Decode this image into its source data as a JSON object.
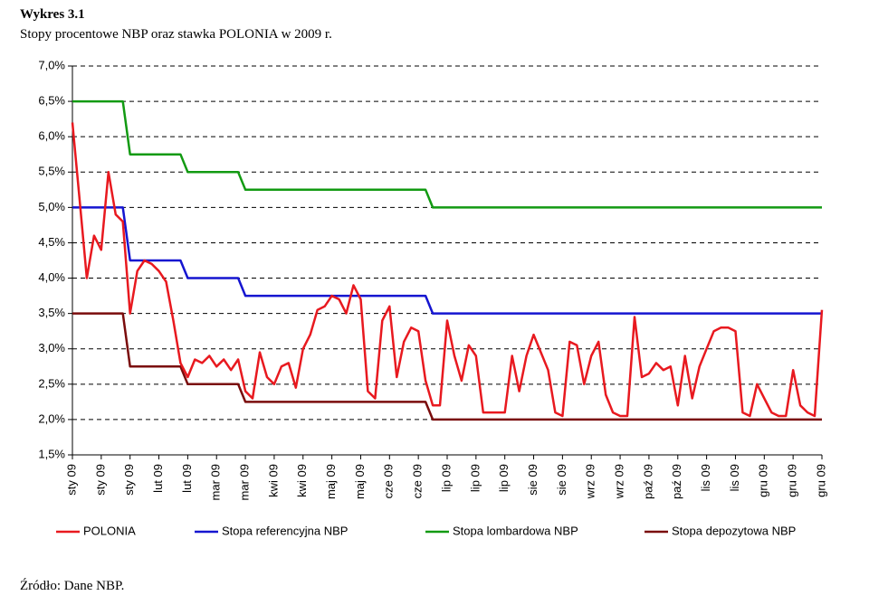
{
  "title": "Wykres 3.1",
  "subtitle": "Stopy procentowe NBP oraz stawka POLONIA w 2009 r.",
  "source": "Źródło: Dane NBP.",
  "chart_data": {
    "type": "line",
    "categories": [
      "sty 09",
      null,
      null,
      null,
      "sty 09",
      null,
      null,
      null,
      "sty 09",
      null,
      null,
      null,
      "lut 09",
      null,
      null,
      null,
      "lut 09",
      null,
      null,
      null,
      "mar 09",
      null,
      null,
      null,
      "mar 09",
      null,
      null,
      null,
      "kwi 09",
      null,
      null,
      null,
      "kwi 09",
      null,
      null,
      null,
      "maj 09",
      null,
      null,
      null,
      "maj 09",
      null,
      null,
      null,
      "cze 09",
      null,
      null,
      null,
      "cze 09",
      null,
      null,
      null,
      "lip 09",
      null,
      null,
      null,
      "lip 09",
      null,
      null,
      null,
      "lip 09",
      null,
      null,
      null,
      "sie 09",
      null,
      null,
      null,
      "sie 09",
      null,
      null,
      null,
      "wrz 09",
      null,
      null,
      null,
      "wrz 09",
      null,
      null,
      null,
      "paź 09",
      null,
      null,
      null,
      "paź 09",
      null,
      null,
      null,
      "lis 09",
      null,
      null,
      null,
      "lis 09",
      null,
      null,
      null,
      "gru 09",
      null,
      null,
      null,
      "gru 09",
      null,
      null,
      null,
      "gru 09"
    ],
    "series": [
      {
        "name": "POLONIA",
        "color": "#e8191f",
        "values": [
          6.2,
          5.1,
          4.0,
          4.6,
          4.4,
          5.5,
          4.9,
          4.8,
          3.5,
          4.1,
          4.25,
          4.2,
          4.1,
          3.95,
          3.4,
          2.8,
          2.6,
          2.85,
          2.8,
          2.9,
          2.75,
          2.85,
          2.7,
          2.85,
          2.4,
          2.3,
          2.95,
          2.6,
          2.5,
          2.75,
          2.8,
          2.45,
          3.0,
          3.2,
          3.55,
          3.6,
          3.75,
          3.7,
          3.5,
          3.9,
          3.7,
          2.4,
          2.3,
          3.4,
          3.6,
          2.6,
          3.1,
          3.3,
          3.25,
          2.55,
          2.2,
          2.2,
          3.4,
          2.9,
          2.55,
          3.05,
          2.9,
          2.1,
          2.1,
          2.1,
          2.1,
          2.9,
          2.4,
          2.9,
          3.2,
          2.95,
          2.7,
          2.1,
          2.05,
          3.1,
          3.05,
          2.5,
          2.9,
          3.1,
          2.35,
          2.1,
          2.05,
          2.05,
          3.45,
          2.6,
          2.65,
          2.8,
          2.7,
          2.75,
          2.2,
          2.9,
          2.3,
          2.75,
          3.0,
          3.25,
          3.3,
          3.3,
          3.25,
          2.1,
          2.05,
          2.5,
          2.3,
          2.1,
          2.05,
          2.05,
          2.7,
          2.2,
          2.1,
          2.05,
          3.55
        ]
      },
      {
        "name": "Stopa referencyjna NBP",
        "color": "#1515d0",
        "values": [
          5.0,
          5.0,
          5.0,
          5.0,
          5.0,
          5.0,
          5.0,
          5.0,
          4.25,
          4.25,
          4.25,
          4.25,
          4.25,
          4.25,
          4.25,
          4.25,
          4.0,
          4.0,
          4.0,
          4.0,
          4.0,
          4.0,
          4.0,
          4.0,
          3.75,
          3.75,
          3.75,
          3.75,
          3.75,
          3.75,
          3.75,
          3.75,
          3.75,
          3.75,
          3.75,
          3.75,
          3.75,
          3.75,
          3.75,
          3.75,
          3.75,
          3.75,
          3.75,
          3.75,
          3.75,
          3.75,
          3.75,
          3.75,
          3.75,
          3.75,
          3.5,
          3.5,
          3.5,
          3.5,
          3.5,
          3.5,
          3.5,
          3.5,
          3.5,
          3.5,
          3.5,
          3.5,
          3.5,
          3.5,
          3.5,
          3.5,
          3.5,
          3.5,
          3.5,
          3.5,
          3.5,
          3.5,
          3.5,
          3.5,
          3.5,
          3.5,
          3.5,
          3.5,
          3.5,
          3.5,
          3.5,
          3.5,
          3.5,
          3.5,
          3.5,
          3.5,
          3.5,
          3.5,
          3.5,
          3.5,
          3.5,
          3.5,
          3.5,
          3.5,
          3.5,
          3.5,
          3.5,
          3.5,
          3.5,
          3.5,
          3.5,
          3.5,
          3.5,
          3.5,
          3.5
        ]
      },
      {
        "name": "Stopa lombardowa NBP",
        "color": "#129a12",
        "values": [
          6.5,
          6.5,
          6.5,
          6.5,
          6.5,
          6.5,
          6.5,
          6.5,
          5.75,
          5.75,
          5.75,
          5.75,
          5.75,
          5.75,
          5.75,
          5.75,
          5.5,
          5.5,
          5.5,
          5.5,
          5.5,
          5.5,
          5.5,
          5.5,
          5.25,
          5.25,
          5.25,
          5.25,
          5.25,
          5.25,
          5.25,
          5.25,
          5.25,
          5.25,
          5.25,
          5.25,
          5.25,
          5.25,
          5.25,
          5.25,
          5.25,
          5.25,
          5.25,
          5.25,
          5.25,
          5.25,
          5.25,
          5.25,
          5.25,
          5.25,
          5.0,
          5.0,
          5.0,
          5.0,
          5.0,
          5.0,
          5.0,
          5.0,
          5.0,
          5.0,
          5.0,
          5.0,
          5.0,
          5.0,
          5.0,
          5.0,
          5.0,
          5.0,
          5.0,
          5.0,
          5.0,
          5.0,
          5.0,
          5.0,
          5.0,
          5.0,
          5.0,
          5.0,
          5.0,
          5.0,
          5.0,
          5.0,
          5.0,
          5.0,
          5.0,
          5.0,
          5.0,
          5.0,
          5.0,
          5.0,
          5.0,
          5.0,
          5.0,
          5.0,
          5.0,
          5.0,
          5.0,
          5.0,
          5.0,
          5.0,
          5.0,
          5.0,
          5.0,
          5.0,
          5.0
        ]
      },
      {
        "name": "Stopa depozytowa NBP",
        "color": "#7a0c0c",
        "values": [
          3.5,
          3.5,
          3.5,
          3.5,
          3.5,
          3.5,
          3.5,
          3.5,
          2.75,
          2.75,
          2.75,
          2.75,
          2.75,
          2.75,
          2.75,
          2.75,
          2.5,
          2.5,
          2.5,
          2.5,
          2.5,
          2.5,
          2.5,
          2.5,
          2.25,
          2.25,
          2.25,
          2.25,
          2.25,
          2.25,
          2.25,
          2.25,
          2.25,
          2.25,
          2.25,
          2.25,
          2.25,
          2.25,
          2.25,
          2.25,
          2.25,
          2.25,
          2.25,
          2.25,
          2.25,
          2.25,
          2.25,
          2.25,
          2.25,
          2.25,
          2.0,
          2.0,
          2.0,
          2.0,
          2.0,
          2.0,
          2.0,
          2.0,
          2.0,
          2.0,
          2.0,
          2.0,
          2.0,
          2.0,
          2.0,
          2.0,
          2.0,
          2.0,
          2.0,
          2.0,
          2.0,
          2.0,
          2.0,
          2.0,
          2.0,
          2.0,
          2.0,
          2.0,
          2.0,
          2.0,
          2.0,
          2.0,
          2.0,
          2.0,
          2.0,
          2.0,
          2.0,
          2.0,
          2.0,
          2.0,
          2.0,
          2.0,
          2.0,
          2.0,
          2.0,
          2.0,
          2.0,
          2.0,
          2.0,
          2.0,
          2.0,
          2.0,
          2.0,
          2.0,
          2.0
        ]
      }
    ],
    "ylim": [
      1.5,
      7.0
    ],
    "yticks": [
      {
        "value": 1.5,
        "label": "1,5%"
      },
      {
        "value": 2.0,
        "label": "2,0%"
      },
      {
        "value": 2.5,
        "label": "2,5%"
      },
      {
        "value": 3.0,
        "label": "3,0%"
      },
      {
        "value": 3.5,
        "label": "3,5%"
      },
      {
        "value": 4.0,
        "label": "4,0%"
      },
      {
        "value": 4.5,
        "label": "4,5%"
      },
      {
        "value": 5.0,
        "label": "5,0%"
      },
      {
        "value": 5.5,
        "label": "5,5%"
      },
      {
        "value": 6.0,
        "label": "6,0%"
      },
      {
        "value": 6.5,
        "label": "6,5%"
      },
      {
        "value": 7.0,
        "label": "7,0%"
      }
    ],
    "grid": true,
    "legend": "bottom"
  }
}
